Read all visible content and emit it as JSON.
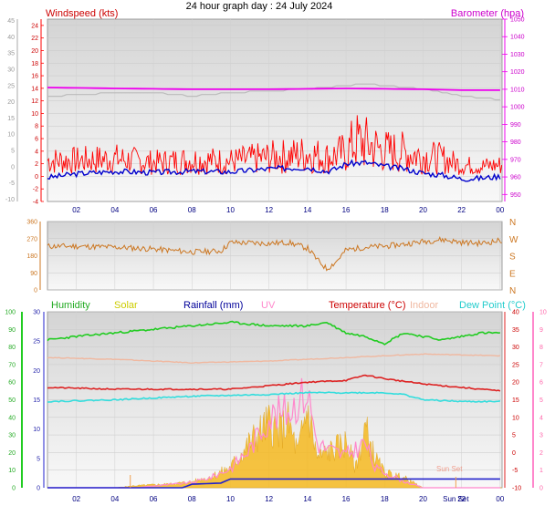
{
  "page": {
    "title": "24 hour graph day : 24 July 2024"
  },
  "colors": {
    "windspeed": "#ff0000",
    "wind_avg": "#0000cc",
    "barometer": "#ee00ee",
    "baro_grey": "#bbbbbb",
    "wind_dir": "#cc7722",
    "humidity": "#22cc22",
    "solar": "#f5b820",
    "rainfall": "#2222cc",
    "uv": "#ff88cc",
    "temperature": "#dd2222",
    "indoor": "#f0b8a0",
    "dew_point": "#33dddd",
    "time_axis": "#000080",
    "panel_bg": "#e4e4e4"
  },
  "chart_data": [
    {
      "type": "line",
      "name": "wind-baro",
      "title": "24 hour graph day : 24 July 2024",
      "left_axis_title": "Windspeed (kts)",
      "right_axis_title": "Barometer (hpa)",
      "x_ticks": [
        "02",
        "04",
        "06",
        "08",
        "10",
        "12",
        "14",
        "16",
        "18",
        "20",
        "22",
        "00"
      ],
      "y_left_outer_ticks": [
        "45",
        "40",
        "35",
        "30",
        "25",
        "20",
        "15",
        "10",
        "5",
        "0",
        "-5",
        "-10"
      ],
      "y_left_ticks": [
        "24",
        "22",
        "20",
        "18",
        "16",
        "14",
        "12",
        "10",
        "8",
        "6",
        "4",
        "2",
        "0"
      ],
      "y_left_extra_ticks": [
        "-2",
        "-4"
      ],
      "y_right_ticks": [
        "1050",
        "1040",
        "1030",
        "1020",
        "1010",
        "1000",
        "990",
        "980",
        "970",
        "960",
        "950"
      ],
      "ylim_wind": [
        -4,
        25
      ],
      "ylim_baro": [
        946,
        1050
      ],
      "xlim_hours": [
        0.5,
        24.1
      ],
      "series": [
        {
          "name": "Windspeed (kts)",
          "x": [
            0.5,
            2,
            4,
            6,
            8,
            10,
            12,
            13,
            14,
            15,
            15.5,
            16,
            16.5,
            17,
            18,
            19,
            20,
            21,
            22,
            23,
            24
          ],
          "y": [
            2.5,
            2.5,
            2.8,
            2.2,
            2.6,
            2.4,
            3,
            3.2,
            3.6,
            3,
            3.4,
            3.8,
            5.6,
            5.2,
            4,
            3.8,
            3.2,
            2.8,
            1.8,
            1.6,
            1.8
          ]
        },
        {
          "x": [
            0.5,
            2,
            4,
            6,
            8,
            10,
            12,
            14,
            15,
            15.5,
            16,
            17,
            18,
            19,
            20,
            21,
            22,
            23,
            24
          ],
          "y": [
            -0.2,
            0.4,
            0.8,
            0.6,
            0.8,
            0.7,
            1.2,
            1.4,
            0.8,
            1.2,
            2,
            2.2,
            1.6,
            1.2,
            0.5,
            0.2,
            -0.4,
            -0.3,
            0
          ]
        },
        {
          "name": "Barometer (hpa)",
          "x": [
            0.5,
            4,
            8,
            12,
            16,
            20,
            22,
            24
          ],
          "y": [
            1011,
            1010.5,
            1010,
            1010,
            1010.5,
            1010,
            1009.5,
            1009.5
          ]
        },
        {
          "x": [
            0.5,
            4,
            6,
            8,
            10,
            12,
            14,
            16,
            17,
            18,
            20,
            22,
            24
          ],
          "y": [
            1006,
            1008,
            1008,
            1006,
            1008,
            1009,
            1010,
            1012,
            1013,
            1012,
            1010,
            1006,
            1004
          ]
        }
      ]
    },
    {
      "type": "line",
      "name": "wind-direction",
      "y_left_ticks": [
        "360",
        "270",
        "180",
        "90",
        "0"
      ],
      "y_right_ticks": [
        "N",
        "W",
        "S",
        "E",
        "N"
      ],
      "ylim": [
        0,
        360
      ],
      "series": [
        {
          "x": [
            0.5,
            2,
            4,
            6,
            8,
            9.5,
            10,
            12,
            13,
            14,
            14.5,
            15,
            15.5,
            16,
            17,
            18,
            19,
            20,
            21,
            22,
            23,
            24
          ],
          "y": [
            230,
            230,
            225,
            215,
            200,
            205,
            250,
            245,
            250,
            220,
            160,
            110,
            150,
            210,
            225,
            230,
            240,
            255,
            265,
            250,
            245,
            260
          ]
        }
      ]
    },
    {
      "type": "line",
      "name": "temp-hum-solar",
      "legend": [
        "Humidity",
        "Solar",
        "Rainfall (mm)",
        "UV",
        "Temperature (°C)",
        "Indoor",
        "Dew Point (°C)"
      ],
      "y_humidity_ticks": [
        "100",
        "90",
        "80",
        "70",
        "60",
        "50",
        "40",
        "30",
        "20",
        "10",
        "0"
      ],
      "y_rain_ticks": [
        "30",
        "25",
        "20",
        "15",
        "10",
        "5",
        "0"
      ],
      "y_temp_ticks": [
        "40",
        "35",
        "30",
        "25",
        "20",
        "15",
        "10",
        "5",
        "0",
        "-5",
        "-10"
      ],
      "y_uv_ticks": [
        "10",
        "9",
        "8",
        "7",
        "6",
        "5",
        "4",
        "3",
        "2",
        "1",
        "0"
      ],
      "ylim_temp": [
        -10,
        40
      ],
      "ylim_rain": [
        0,
        30
      ],
      "sun_set_label": "Sun Set",
      "series": [
        {
          "name": "Humidity",
          "x": [
            0.5,
            2,
            4,
            6,
            8,
            10,
            12,
            14,
            15,
            16,
            17,
            18,
            19,
            20,
            21,
            22,
            23,
            24
          ],
          "y": [
            32,
            33,
            34,
            35,
            36,
            37,
            36,
            36,
            37,
            34,
            33,
            31,
            34,
            33,
            32,
            33,
            34,
            34
          ]
        },
        {
          "name": "Indoor",
          "x": [
            0.5,
            4,
            8,
            12,
            16,
            20,
            24
          ],
          "y": [
            27,
            26.5,
            25.5,
            26,
            27,
            28,
            27.5
          ]
        },
        {
          "name": "Temperature (°C)",
          "x": [
            0.5,
            4,
            8,
            10,
            12,
            14,
            16,
            17,
            18,
            20,
            22,
            24
          ],
          "y": [
            18.5,
            18,
            18,
            18,
            19,
            20,
            20.5,
            22,
            21,
            19.5,
            18.5,
            17.5
          ]
        },
        {
          "name": "Dew Point (°C)",
          "x": [
            0.5,
            4,
            8,
            12,
            14,
            16,
            18,
            19,
            20,
            22,
            24
          ],
          "y": [
            14.5,
            15,
            16,
            16.5,
            17,
            17,
            17,
            16.5,
            15,
            14.5,
            14.5
          ]
        },
        {
          "name": "Solar",
          "x": [
            0.5,
            4,
            5,
            7,
            8,
            9,
            10,
            11,
            12,
            12.5,
            13,
            13.5,
            14,
            14.5,
            15,
            16,
            16.5,
            17,
            17.5,
            18,
            19,
            19.5,
            20,
            24
          ],
          "y": [
            0,
            0,
            0.4,
            0.8,
            1.2,
            2.2,
            4,
            9,
            13,
            11,
            13,
            7,
            16,
            6,
            7,
            9,
            4,
            12,
            6,
            3,
            2,
            1,
            0,
            0
          ]
        },
        {
          "name": "UV",
          "x": [
            0.5,
            5,
            8,
            9,
            10,
            11,
            12,
            13,
            14,
            14.5,
            15,
            16,
            17,
            17.5,
            18,
            19,
            20,
            24
          ],
          "y": [
            0,
            0,
            0.4,
            0.8,
            1.5,
            3,
            5.5,
            6,
            7.5,
            3.5,
            3,
            2.5,
            3.5,
            1.5,
            1.2,
            0.5,
            0,
            0
          ]
        },
        {
          "name": "Rainfall (mm)",
          "x": [
            0.5,
            7.5,
            8,
            9.5,
            10,
            24
          ],
          "y": [
            0,
            0,
            0.6,
            0.8,
            1.5,
            1.5
          ]
        }
      ]
    }
  ]
}
